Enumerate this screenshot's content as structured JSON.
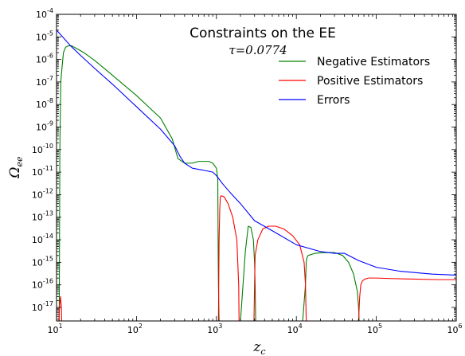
{
  "chart_data": {
    "type": "line",
    "title": "Constraints on the EE",
    "subtitle": "τ=0.0774",
    "xlabel": "z",
    "xlabel_sub": "c",
    "ylabel": "Ω",
    "ylabel_sub": "ee",
    "x_scale": "log",
    "y_scale": "log",
    "xlim": [
      10,
      1000000
    ],
    "ylim": [
      2.5e-18,
      0.0001
    ],
    "x_ticks": [
      {
        "base": "10",
        "exp": "1",
        "value": 10
      },
      {
        "base": "10",
        "exp": "2",
        "value": 100
      },
      {
        "base": "10",
        "exp": "3",
        "value": 1000
      },
      {
        "base": "10",
        "exp": "4",
        "value": 10000
      },
      {
        "base": "10",
        "exp": "5",
        "value": 100000
      },
      {
        "base": "10",
        "exp": "6",
        "value": 1000000
      }
    ],
    "y_ticks": [
      {
        "base": "10",
        "exp": "-4",
        "value": 0.0001
      },
      {
        "base": "10",
        "exp": "-5",
        "value": 1e-05
      },
      {
        "base": "10",
        "exp": "-6",
        "value": 1e-06
      },
      {
        "base": "10",
        "exp": "-7",
        "value": 1e-07
      },
      {
        "base": "10",
        "exp": "-8",
        "value": 1e-08
      },
      {
        "base": "10",
        "exp": "-9",
        "value": 1e-09
      },
      {
        "base": "10",
        "exp": "-10",
        "value": 1e-10
      },
      {
        "base": "10",
        "exp": "-11",
        "value": 1e-11
      },
      {
        "base": "10",
        "exp": "-12",
        "value": 1e-12
      },
      {
        "base": "10",
        "exp": "-13",
        "value": 1e-13
      },
      {
        "base": "10",
        "exp": "-14",
        "value": 1e-14
      },
      {
        "base": "10",
        "exp": "-15",
        "value": 1e-15
      },
      {
        "base": "10",
        "exp": "-16",
        "value": 1e-16
      },
      {
        "base": "10",
        "exp": "-17",
        "value": 1e-17
      }
    ],
    "grid": false,
    "legend_position": "upper-right",
    "series": [
      {
        "name": "Negative Estimators",
        "color": "#008000",
        "x": [
          10.8,
          11.0,
          11.3,
          11.6,
          12.2,
          13.0,
          14.0,
          15.5,
          18,
          22,
          30,
          50,
          100,
          200,
          280,
          330,
          400,
          500,
          600,
          700,
          800,
          900,
          1000,
          1040,
          1050,
          1060,
          1080,
          2000,
          2300,
          2500,
          2700,
          2900,
          3000,
          3050,
          3100,
          12000,
          13000,
          13300,
          13500,
          14000,
          17000,
          22000,
          30000,
          38000,
          45000,
          52000,
          58000,
          60000,
          61000
        ],
        "y": [
          2.5e-18,
          1e-10,
          1e-07,
          3e-07,
          2e-06,
          3.5e-06,
          4e-06,
          4e-06,
          3e-06,
          2e-06,
          9e-07,
          2e-07,
          2.5e-08,
          2.5e-09,
          3e-10,
          4e-11,
          2.5e-11,
          2.5e-11,
          3e-11,
          3e-11,
          3e-11,
          2.5e-11,
          1.5e-11,
          5e-12,
          1e-14,
          1e-16,
          2.5e-18,
          2.5e-18,
          3e-15,
          4e-14,
          3.5e-14,
          1e-14,
          1e-15,
          1e-16,
          2.5e-18,
          2.5e-18,
          1e-16,
          1e-15,
          1.5e-15,
          2e-15,
          2.5e-15,
          2.7e-15,
          2.7e-15,
          2e-15,
          1e-15,
          3e-16,
          5e-17,
          1e-17,
          2.5e-18
        ]
      },
      {
        "name": "Positive Estimators",
        "color": "#ff0000",
        "x": [
          10.7,
          10.9,
          11.2,
          11.5,
          11.6,
          1060,
          1080,
          1100,
          1120,
          1150,
          1250,
          1400,
          1600,
          1800,
          1900,
          1920,
          2950,
          3000,
          3050,
          3300,
          3800,
          4500,
          5500,
          7000,
          9000,
          11000,
          12500,
          13000,
          13300,
          60000,
          62000,
          64000,
          67000,
          72000,
          80000,
          100000,
          150000,
          300000,
          600000,
          1000000
        ],
        "y": [
          2.5e-18,
          1e-17,
          3e-17,
          1e-17,
          2.5e-18,
          2.5e-18,
          1e-14,
          2e-13,
          8e-13,
          9e-13,
          8e-13,
          4e-13,
          1e-13,
          1e-14,
          1e-16,
          2.5e-18,
          2.5e-18,
          1e-16,
          2e-15,
          1e-14,
          3e-14,
          4e-14,
          4e-14,
          3e-14,
          1.5e-14,
          6e-15,
          1e-15,
          1e-16,
          2.5e-18,
          2.5e-18,
          3e-17,
          1e-16,
          1.5e-16,
          1.8e-16,
          2e-16,
          2e-16,
          1.9e-16,
          1.8e-16,
          1.7e-16,
          1.7e-16
        ]
      },
      {
        "name": "Errors",
        "color": "#0000ff",
        "x": [
          10,
          15,
          20,
          30,
          50,
          100,
          200,
          300,
          350,
          400,
          500,
          700,
          900,
          1000,
          1200,
          1500,
          2000,
          3000,
          5000,
          10000,
          20000,
          30000,
          40000,
          60000,
          100000,
          200000,
          500000,
          1000000
        ],
        "y": [
          2e-05,
          4e-06,
          1.5e-06,
          4e-07,
          8e-08,
          8e-09,
          8e-10,
          1.5e-10,
          5e-11,
          2.5e-11,
          1.5e-11,
          1.2e-11,
          1e-11,
          7e-12,
          3e-12,
          1.2e-12,
          4e-13,
          7e-14,
          2.5e-14,
          6e-15,
          3e-15,
          2.5e-15,
          2.5e-15,
          1.2e-15,
          6e-16,
          4e-16,
          3e-16,
          2.7e-16
        ]
      }
    ]
  }
}
